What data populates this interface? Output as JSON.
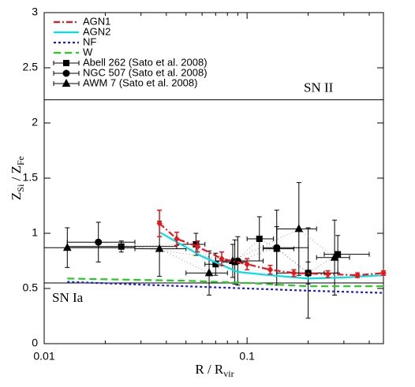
{
  "chart_data": {
    "type": "line",
    "xlabel": {
      "text": "R / R",
      "sub": "vir"
    },
    "ylabel": [
      {
        "text": "Z",
        "sub": "Si"
      },
      {
        "text": " / Z",
        "sub": "Fe"
      }
    ],
    "xlim": [
      0.01,
      0.47
    ],
    "ylim": [
      0,
      3
    ],
    "xscale": "log",
    "xticks": [
      0.01,
      0.1
    ],
    "xminor": [
      0.02,
      0.03,
      0.04,
      0.05,
      0.06,
      0.07,
      0.08,
      0.09,
      0.2,
      0.3,
      0.4
    ],
    "yticks": [
      0,
      0.5,
      1,
      1.5,
      2,
      2.5,
      3
    ],
    "legend": "upper left",
    "hlines": [
      {
        "value": 2.21,
        "label": "SN II"
      },
      {
        "value": 0.55,
        "label": "SN Ia"
      }
    ],
    "series": [
      {
        "name": "AGN1",
        "color": "#e8161b",
        "style": "dashdot",
        "marker": "diamond",
        "x": [
          0.037,
          0.045,
          0.057,
          0.075,
          0.1,
          0.13,
          0.17,
          0.25,
          0.35,
          0.47
        ],
        "values": [
          1.09,
          0.95,
          0.88,
          0.77,
          0.72,
          0.67,
          0.64,
          0.63,
          0.62,
          0.64
        ],
        "yerr": [
          0.12,
          0.06,
          0.05,
          0.06,
          0.05,
          0.04,
          0.03,
          0.03,
          0.02,
          0.02
        ]
      },
      {
        "name": "AGN2",
        "color": "#00e0e8",
        "style": "solid",
        "x": [
          0.037,
          0.06,
          0.09,
          0.13,
          0.2,
          0.3,
          0.47
        ],
        "values": [
          1.01,
          0.79,
          0.65,
          0.62,
          0.59,
          0.6,
          0.62
        ]
      },
      {
        "name": "NF",
        "color": "#1a1adc",
        "style": "dotted",
        "x": [
          0.013,
          0.05,
          0.1,
          0.2,
          0.47
        ],
        "values": [
          0.56,
          0.52,
          0.5,
          0.48,
          0.46
        ]
      },
      {
        "name": "W",
        "color": "#22cc22",
        "style": "dashed",
        "x": [
          0.013,
          0.05,
          0.1,
          0.2,
          0.47
        ],
        "values": [
          0.59,
          0.57,
          0.55,
          0.52,
          0.52
        ]
      },
      {
        "name": "Abell 262 (Sato et al. 2008)",
        "color": "#000000",
        "style": "obs",
        "marker": "square",
        "x": [
          0.024,
          0.056,
          0.07,
          0.087,
          0.115,
          0.14,
          0.2,
          0.28
        ],
        "values": [
          0.88,
          0.9,
          0.72,
          0.74,
          0.95,
          0.86,
          0.64,
          0.81
        ],
        "yerr": [
          0.05,
          0.1,
          0.1,
          0.2,
          0.2,
          0.2,
          0.1,
          0.17
        ],
        "xlo": [
          0.013,
          0.045,
          0.062,
          0.075,
          0.1,
          0.12,
          0.17,
          0.24
        ],
        "xhi": [
          0.045,
          0.062,
          0.075,
          0.1,
          0.135,
          0.17,
          0.24,
          0.4
        ]
      },
      {
        "name": "NGC 507 (Sato et al. 2008)",
        "color": "#000000",
        "style": "obs",
        "marker": "circle",
        "x": [
          0.0185,
          0.09,
          0.14,
          0.2
        ],
        "values": [
          0.92,
          0.75,
          0.87,
          0.64
        ],
        "yerr": [
          0.18,
          0.22,
          0.34,
          0.41
        ],
        "xlo": [
          0.013,
          0.07,
          0.12,
          0.14
        ],
        "xhi": [
          0.028,
          0.12,
          0.2,
          0.28
        ]
      },
      {
        "name": "AWM 7 (Sato et al. 2008)",
        "color": "#000000",
        "style": "obs",
        "marker": "triangle",
        "x": [
          0.013,
          0.037,
          0.065,
          0.085,
          0.18,
          0.27
        ],
        "values": [
          0.87,
          0.86,
          0.64,
          0.75,
          1.04,
          0.78
        ],
        "yerr": [
          0.18,
          0.25,
          0.2,
          0.15,
          0.42,
          0.34
        ],
        "xlo": [
          0.01,
          0.028,
          0.05,
          0.07,
          0.14,
          0.22
        ],
        "xhi": [
          0.028,
          0.05,
          0.08,
          0.1,
          0.22,
          0.32
        ]
      }
    ]
  }
}
